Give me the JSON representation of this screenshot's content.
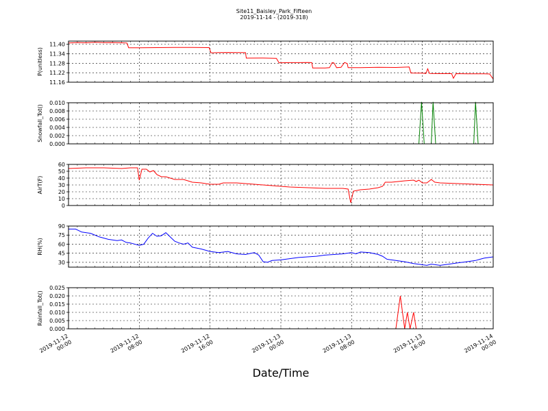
{
  "chart_data": {
    "title": "Site11_Baisley_Park_Fifteen",
    "subtitle": "2019-11-14 - (2019-318)",
    "xlabel": "Date/Time",
    "x_range": [
      "2019-11-12 00:00",
      "2019-11-14 00:00"
    ],
    "x_ticks": [
      {
        "line1": "2019-11-12",
        "line2": "00:00",
        "hours": 0
      },
      {
        "line1": "2019-11-12",
        "line2": "08:00",
        "hours": 8
      },
      {
        "line1": "2019-11-12",
        "line2": "16:00",
        "hours": 16
      },
      {
        "line1": "2019-11-13",
        "line2": "00:00",
        "hours": 24
      },
      {
        "line1": "2019-11-13",
        "line2": "08:00",
        "hours": 32
      },
      {
        "line1": "2019-11-13",
        "line2": "16:00",
        "hours": 40
      },
      {
        "line1": "2019-11-14",
        "line2": "00:00",
        "hours": 48
      }
    ],
    "grid": true,
    "panels": [
      {
        "type": "line",
        "ylabel": "P(unitless)",
        "color": "#ff0000",
        "ylim": [
          11.16,
          11.42
        ],
        "yticks": [
          "11.16",
          "11.22",
          "11.28",
          "11.34",
          "11.40"
        ],
        "points": [
          [
            0,
            11.408
          ],
          [
            1,
            11.411
          ],
          [
            2,
            11.409
          ],
          [
            3,
            11.412
          ],
          [
            4,
            11.41
          ],
          [
            5,
            11.411
          ],
          [
            6,
            11.409
          ],
          [
            6.6,
            11.408
          ],
          [
            6.8,
            11.378
          ],
          [
            8,
            11.378
          ],
          [
            10,
            11.379
          ],
          [
            12,
            11.38
          ],
          [
            14,
            11.38
          ],
          [
            15.9,
            11.379
          ],
          [
            16.1,
            11.346
          ],
          [
            17,
            11.347
          ],
          [
            18,
            11.348
          ],
          [
            19,
            11.347
          ],
          [
            20,
            11.347
          ],
          [
            20.1,
            11.312
          ],
          [
            22,
            11.313
          ],
          [
            23.5,
            11.311
          ],
          [
            23.8,
            11.282
          ],
          [
            25,
            11.284
          ],
          [
            26,
            11.284
          ],
          [
            27,
            11.285
          ],
          [
            27.5,
            11.284
          ],
          [
            27.6,
            11.25
          ],
          [
            29,
            11.25
          ],
          [
            29.5,
            11.252
          ],
          [
            29.8,
            11.284
          ],
          [
            30,
            11.282
          ],
          [
            30.3,
            11.252
          ],
          [
            30.8,
            11.254
          ],
          [
            31.2,
            11.285
          ],
          [
            31.5,
            11.278
          ],
          [
            31.6,
            11.252
          ],
          [
            33,
            11.252
          ],
          [
            35,
            11.254
          ],
          [
            37,
            11.253
          ],
          [
            38.5,
            11.256
          ],
          [
            38.7,
            11.218
          ],
          [
            40,
            11.217
          ],
          [
            40.4,
            11.215
          ],
          [
            40.6,
            11.245
          ],
          [
            40.8,
            11.215
          ],
          [
            42,
            11.214
          ],
          [
            43.3,
            11.214
          ],
          [
            43.5,
            11.185
          ],
          [
            43.8,
            11.214
          ],
          [
            45,
            11.213
          ],
          [
            47,
            11.213
          ],
          [
            47.6,
            11.212
          ],
          [
            48,
            11.18
          ]
        ]
      },
      {
        "type": "line",
        "ylabel": "Snowfall_Tot()",
        "color": "#008000",
        "ylim": [
          0,
          0.01
        ],
        "yticks": [
          "0.000",
          "0.002",
          "0.004",
          "0.006",
          "0.008",
          "0.010"
        ],
        "points": [
          [
            0,
            0
          ],
          [
            39.6,
            0
          ],
          [
            39.9,
            0.0102
          ],
          [
            40.2,
            0
          ],
          [
            41,
            0
          ],
          [
            41.2,
            0.0102
          ],
          [
            41.5,
            0
          ],
          [
            45.8,
            0
          ],
          [
            46,
            0.0102
          ],
          [
            46.3,
            0
          ],
          [
            48,
            0
          ]
        ]
      },
      {
        "type": "line",
        "ylabel": "AirT(F)",
        "color": "#ff0000",
        "ylim": [
          0,
          60
        ],
        "yticks": [
          "0",
          "10",
          "20",
          "30",
          "40",
          "50",
          "60"
        ],
        "points": [
          [
            0,
            54
          ],
          [
            2,
            55
          ],
          [
            4,
            55
          ],
          [
            6,
            54
          ],
          [
            7,
            55
          ],
          [
            7.8,
            55
          ],
          [
            8,
            37
          ],
          [
            8.3,
            53
          ],
          [
            8.8,
            53
          ],
          [
            9.2,
            49
          ],
          [
            9.6,
            51
          ],
          [
            10,
            45
          ],
          [
            10.5,
            42
          ],
          [
            11,
            42
          ],
          [
            12,
            38
          ],
          [
            13,
            38
          ],
          [
            14,
            34
          ],
          [
            15,
            33
          ],
          [
            16,
            31
          ],
          [
            17,
            31
          ],
          [
            17.5,
            33
          ],
          [
            19,
            33
          ],
          [
            21,
            31
          ],
          [
            23,
            29
          ],
          [
            25,
            27
          ],
          [
            27,
            26
          ],
          [
            29,
            25
          ],
          [
            31,
            25
          ],
          [
            31.6,
            24
          ],
          [
            31.9,
            4
          ],
          [
            32.2,
            21
          ],
          [
            33,
            23
          ],
          [
            34,
            24
          ],
          [
            35,
            26
          ],
          [
            35.5,
            28
          ],
          [
            35.8,
            34
          ],
          [
            36.5,
            34
          ],
          [
            38,
            36
          ],
          [
            39,
            37
          ],
          [
            39.3,
            35
          ],
          [
            39.6,
            37
          ],
          [
            40,
            33
          ],
          [
            40.5,
            33
          ],
          [
            41,
            38
          ],
          [
            41.4,
            34
          ],
          [
            42,
            33
          ],
          [
            44,
            32
          ],
          [
            46,
            31
          ],
          [
            48,
            30
          ]
        ]
      },
      {
        "type": "line",
        "ylabel": "RH(%)",
        "color": "#0000ff",
        "ylim": [
          22,
          90
        ],
        "yticks": [
          "30",
          "45",
          "60",
          "75",
          "90"
        ],
        "points": [
          [
            0,
            85
          ],
          [
            0.8,
            85
          ],
          [
            1.5,
            80
          ],
          [
            2.5,
            78
          ],
          [
            3.5,
            72
          ],
          [
            4.5,
            68
          ],
          [
            5.5,
            66
          ],
          [
            6,
            67
          ],
          [
            6.5,
            63
          ],
          [
            7,
            62
          ],
          [
            8,
            58
          ],
          [
            8.5,
            60
          ],
          [
            9,
            70
          ],
          [
            9.5,
            78
          ],
          [
            10,
            73
          ],
          [
            10.5,
            74
          ],
          [
            11,
            79
          ],
          [
            11.5,
            72
          ],
          [
            12,
            65
          ],
          [
            12.5,
            62
          ],
          [
            13,
            60
          ],
          [
            13.5,
            62
          ],
          [
            14,
            55
          ],
          [
            15,
            52
          ],
          [
            16,
            48
          ],
          [
            17,
            46
          ],
          [
            18,
            48
          ],
          [
            19,
            44
          ],
          [
            20,
            43
          ],
          [
            21,
            46
          ],
          [
            21.5,
            42
          ],
          [
            22,
            31
          ],
          [
            22.5,
            30
          ],
          [
            23,
            33
          ],
          [
            24,
            34
          ],
          [
            25,
            36
          ],
          [
            26,
            38
          ],
          [
            27,
            39
          ],
          [
            28,
            40
          ],
          [
            29,
            42
          ],
          [
            30,
            43
          ],
          [
            31,
            44
          ],
          [
            32,
            46
          ],
          [
            32.5,
            44
          ],
          [
            33,
            47
          ],
          [
            34,
            46
          ],
          [
            35,
            43
          ],
          [
            35.5,
            40
          ],
          [
            36,
            35
          ],
          [
            37,
            33
          ],
          [
            38,
            31
          ],
          [
            39,
            28
          ],
          [
            40,
            26
          ],
          [
            40.5,
            25
          ],
          [
            41,
            27
          ],
          [
            41.5,
            26
          ],
          [
            42,
            25
          ],
          [
            43,
            27
          ],
          [
            44,
            29
          ],
          [
            45,
            31
          ],
          [
            46,
            33
          ],
          [
            46.5,
            35
          ],
          [
            47,
            37
          ],
          [
            48,
            39
          ]
        ]
      },
      {
        "type": "line",
        "ylabel": "Rainfall_Tot()",
        "color": "#ff0000",
        "ylim": [
          0,
          0.025
        ],
        "yticks": [
          "0.000",
          "0.005",
          "0.010",
          "0.015",
          "0.020",
          "0.025"
        ],
        "points": [
          [
            0,
            0
          ],
          [
            37,
            0
          ],
          [
            37.5,
            0.02
          ],
          [
            38,
            0
          ],
          [
            38.3,
            0.01
          ],
          [
            38.6,
            0
          ],
          [
            39,
            0.01
          ],
          [
            39.3,
            0
          ],
          [
            48,
            0
          ]
        ]
      }
    ]
  }
}
